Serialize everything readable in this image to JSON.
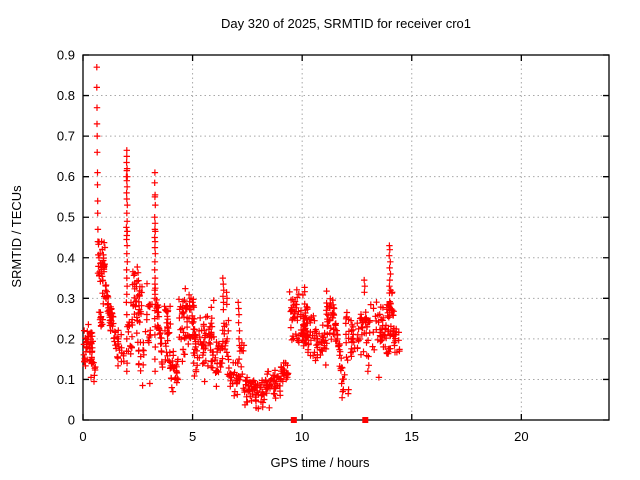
{
  "page": {
    "background": "#ffffff"
  },
  "chart_data": {
    "type": "scatter",
    "title": "Day 320 of 2025, SRMTID for receiver cro1",
    "xlabel": "GPS time / hours",
    "ylabel": "SRMTID / TECUs",
    "xlim": [
      0,
      24
    ],
    "ylim": [
      0,
      0.9
    ],
    "xticks": [
      "0",
      "5",
      "10",
      "15",
      "20"
    ],
    "yticks": [
      "0",
      "0.1",
      "0.2",
      "0.3",
      "0.4",
      "0.5",
      "0.6",
      "0.7",
      "0.8",
      "0.9"
    ],
    "grid": true,
    "legend_position": "none",
    "marker": {
      "shape": "plus",
      "color": "#ff0000",
      "size": 7
    },
    "axis_color": "#000000",
    "grid_color": "#a8a8a8",
    "zero_markers": {
      "shape": "square",
      "color": "#ff0000",
      "y": 0,
      "x": [
        9.62,
        12.88
      ]
    },
    "points_explicit": [
      [
        0.63,
        0.87
      ],
      [
        0.63,
        0.82
      ],
      [
        0.64,
        0.77
      ],
      [
        0.64,
        0.73
      ],
      [
        0.65,
        0.7
      ],
      [
        0.65,
        0.66
      ],
      [
        0.66,
        0.61
      ],
      [
        0.66,
        0.58
      ],
      [
        0.67,
        0.54
      ],
      [
        0.67,
        0.51
      ],
      [
        0.68,
        0.47
      ],
      [
        0.68,
        0.44
      ],
      [
        2.0,
        0.665
      ],
      [
        2.0,
        0.65
      ],
      [
        1.99,
        0.635
      ],
      [
        2.01,
        0.62
      ],
      [
        2.0,
        0.615
      ],
      [
        2.02,
        0.6
      ],
      [
        1.98,
        0.6
      ],
      [
        2.0,
        0.59
      ],
      [
        2.01,
        0.575
      ],
      [
        1.99,
        0.56
      ],
      [
        2.0,
        0.545
      ],
      [
        2.02,
        0.53
      ],
      [
        2.0,
        0.51
      ],
      [
        2.01,
        0.49
      ],
      [
        1.98,
        0.475
      ],
      [
        2.02,
        0.465
      ],
      [
        2.0,
        0.455
      ],
      [
        1.99,
        0.445
      ],
      [
        2.01,
        0.43
      ],
      [
        2.0,
        0.41
      ],
      [
        2.02,
        0.39
      ],
      [
        1.99,
        0.37
      ],
      [
        2.0,
        0.35
      ],
      [
        2.01,
        0.33
      ],
      [
        2.0,
        0.31
      ],
      [
        1.98,
        0.29
      ],
      [
        2.0,
        0.26
      ],
      [
        2.02,
        0.23
      ],
      [
        2.0,
        0.2
      ],
      [
        1.99,
        0.17
      ],
      [
        2.01,
        0.14
      ],
      [
        2.0,
        0.12
      ],
      [
        3.28,
        0.61
      ],
      [
        3.27,
        0.585
      ],
      [
        3.29,
        0.555
      ],
      [
        3.28,
        0.55
      ],
      [
        3.3,
        0.53
      ],
      [
        3.27,
        0.5
      ],
      [
        3.29,
        0.485
      ],
      [
        3.28,
        0.47
      ],
      [
        3.3,
        0.465
      ],
      [
        3.27,
        0.45
      ],
      [
        3.29,
        0.44
      ],
      [
        3.28,
        0.425
      ],
      [
        3.3,
        0.41
      ],
      [
        3.28,
        0.39
      ],
      [
        3.27,
        0.37
      ],
      [
        3.29,
        0.35
      ],
      [
        3.28,
        0.335
      ],
      [
        3.3,
        0.325
      ],
      [
        3.27,
        0.32
      ],
      [
        3.29,
        0.31
      ],
      [
        3.28,
        0.3
      ],
      [
        3.3,
        0.285
      ],
      [
        3.28,
        0.27
      ],
      [
        3.27,
        0.25
      ],
      [
        3.29,
        0.23
      ],
      [
        3.28,
        0.21
      ],
      [
        3.3,
        0.18
      ],
      [
        3.28,
        0.15
      ],
      [
        3.29,
        0.12
      ],
      [
        6.38,
        0.35
      ],
      [
        6.4,
        0.335
      ],
      [
        6.42,
        0.32
      ],
      [
        6.39,
        0.305
      ],
      [
        6.41,
        0.29
      ],
      [
        6.55,
        0.315
      ],
      [
        6.57,
        0.3
      ],
      [
        6.56,
        0.285
      ],
      [
        7.08,
        0.29
      ],
      [
        7.1,
        0.275
      ],
      [
        7.12,
        0.26
      ],
      [
        7.1,
        0.24
      ],
      [
        7.14,
        0.22
      ],
      [
        7.12,
        0.2
      ],
      [
        7.16,
        0.17
      ],
      [
        13.98,
        0.43
      ],
      [
        14.0,
        0.42
      ],
      [
        13.97,
        0.405
      ],
      [
        14.02,
        0.39
      ],
      [
        13.99,
        0.375
      ],
      [
        14.03,
        0.36
      ],
      [
        14.0,
        0.345
      ],
      [
        13.98,
        0.33
      ],
      [
        14.04,
        0.32
      ],
      [
        12.83,
        0.345
      ],
      [
        12.86,
        0.33
      ],
      [
        12.84,
        0.315
      ],
      [
        2.72,
        0.085
      ],
      [
        3.05,
        0.09
      ],
      [
        6.9,
        0.06
      ],
      [
        6.93,
        0.07
      ],
      [
        12.1,
        0.065
      ],
      [
        12.12,
        0.075
      ],
      [
        13.5,
        0.105
      ],
      [
        13.0,
        0.12
      ],
      [
        13.04,
        0.135
      ],
      [
        11.82,
        0.055
      ],
      [
        11.85,
        0.07
      ],
      [
        11.8,
        0.09
      ],
      [
        0.5,
        0.095
      ],
      [
        0.52,
        0.11
      ],
      [
        4.1,
        0.07
      ],
      [
        4.05,
        0.08
      ],
      [
        5.55,
        0.095
      ],
      [
        8.5,
        0.03
      ],
      [
        8.2,
        0.032
      ],
      [
        7.9,
        0.03
      ],
      [
        8.0,
        0.028
      ]
    ],
    "clusters": [
      {
        "x0": 0.02,
        "x1": 0.45,
        "y0": 0.13,
        "y1": 0.24,
        "n": 45
      },
      {
        "x0": 0.3,
        "x1": 0.58,
        "y0": 0.1,
        "y1": 0.16,
        "n": 10
      },
      {
        "x0": 0.68,
        "x1": 1.0,
        "y0": 0.3,
        "y1": 0.46,
        "n": 38
      },
      {
        "x0": 0.7,
        "x1": 0.95,
        "y0": 0.17,
        "y1": 0.3,
        "n": 12
      },
      {
        "x0": 0.95,
        "x1": 1.3,
        "y0": 0.22,
        "y1": 0.36,
        "n": 30,
        "trend": -1
      },
      {
        "x0": 1.25,
        "x1": 1.6,
        "y0": 0.15,
        "y1": 0.28,
        "n": 24,
        "trend": -1
      },
      {
        "x0": 1.55,
        "x1": 1.9,
        "y0": 0.13,
        "y1": 0.23,
        "n": 18
      },
      {
        "x0": 2.05,
        "x1": 2.25,
        "y0": 0.14,
        "y1": 0.34,
        "n": 16
      },
      {
        "x0": 2.25,
        "x1": 2.7,
        "y0": 0.22,
        "y1": 0.38,
        "n": 40
      },
      {
        "x0": 2.45,
        "x1": 2.8,
        "y0": 0.12,
        "y1": 0.23,
        "n": 14
      },
      {
        "x0": 2.85,
        "x1": 3.15,
        "y0": 0.15,
        "y1": 0.38,
        "n": 16
      },
      {
        "x0": 3.33,
        "x1": 3.68,
        "y0": 0.13,
        "y1": 0.3,
        "n": 26,
        "trend": -1
      },
      {
        "x0": 3.7,
        "x1": 4.0,
        "y0": 0.12,
        "y1": 0.3,
        "n": 26
      },
      {
        "x0": 3.95,
        "x1": 4.35,
        "y0": 0.08,
        "y1": 0.18,
        "n": 26
      },
      {
        "x0": 4.35,
        "x1": 4.65,
        "y0": 0.12,
        "y1": 0.33,
        "n": 22
      },
      {
        "x0": 4.65,
        "x1": 5.1,
        "y0": 0.15,
        "y1": 0.34,
        "n": 40
      },
      {
        "x0": 5.05,
        "x1": 5.6,
        "y0": 0.1,
        "y1": 0.26,
        "n": 40
      },
      {
        "x0": 5.6,
        "x1": 6.0,
        "y0": 0.1,
        "y1": 0.32,
        "n": 30
      },
      {
        "x0": 6.0,
        "x1": 6.35,
        "y0": 0.06,
        "y1": 0.22,
        "n": 22
      },
      {
        "x0": 6.35,
        "x1": 6.65,
        "y0": 0.1,
        "y1": 0.28,
        "n": 18
      },
      {
        "x0": 6.6,
        "x1": 7.05,
        "y0": 0.05,
        "y1": 0.16,
        "n": 24
      },
      {
        "x0": 7.05,
        "x1": 7.35,
        "y0": 0.08,
        "y1": 0.2,
        "n": 14
      },
      {
        "x0": 7.3,
        "x1": 8.35,
        "y0": 0.03,
        "y1": 0.11,
        "n": 60
      },
      {
        "x0": 8.3,
        "x1": 9.05,
        "y0": 0.04,
        "y1": 0.13,
        "n": 46
      },
      {
        "x0": 9.0,
        "x1": 9.4,
        "y0": 0.07,
        "y1": 0.16,
        "n": 22
      },
      {
        "x0": 9.42,
        "x1": 9.98,
        "y0": 0.17,
        "y1": 0.33,
        "n": 40
      },
      {
        "x0": 9.98,
        "x1": 10.25,
        "y0": 0.2,
        "y1": 0.33,
        "n": 18
      },
      {
        "x0": 10.0,
        "x1": 10.65,
        "y0": 0.14,
        "y1": 0.28,
        "n": 45
      },
      {
        "x0": 10.6,
        "x1": 11.1,
        "y0": 0.12,
        "y1": 0.25,
        "n": 30
      },
      {
        "x0": 11.1,
        "x1": 11.5,
        "y0": 0.18,
        "y1": 0.33,
        "n": 35
      },
      {
        "x0": 11.45,
        "x1": 11.95,
        "y0": 0.08,
        "y1": 0.25,
        "n": 28,
        "trend": -1
      },
      {
        "x0": 11.95,
        "x1": 12.35,
        "y0": 0.13,
        "y1": 0.28,
        "n": 26
      },
      {
        "x0": 12.35,
        "x1": 12.6,
        "y0": 0.15,
        "y1": 0.25,
        "n": 10
      },
      {
        "x0": 12.6,
        "x1": 13.15,
        "y0": 0.14,
        "y1": 0.32,
        "n": 30
      },
      {
        "x0": 13.2,
        "x1": 14.3,
        "y0": 0.14,
        "y1": 0.3,
        "n": 70
      },
      {
        "x0": 13.85,
        "x1": 14.2,
        "y0": 0.22,
        "y1": 0.33,
        "n": 18
      },
      {
        "x0": 14.25,
        "x1": 14.45,
        "y0": 0.16,
        "y1": 0.25,
        "n": 8
      }
    ]
  }
}
